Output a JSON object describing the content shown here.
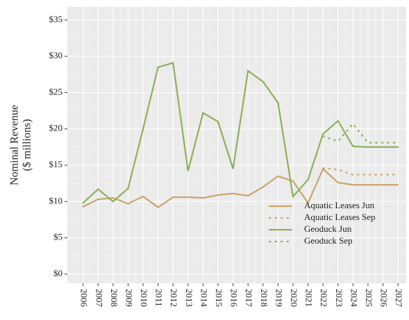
{
  "chart_data": {
    "type": "line",
    "y_label": [
      "Nominal Revenue",
      "($ millions)"
    ],
    "x": [
      2006,
      2007,
      2008,
      2009,
      2010,
      2011,
      2012,
      2013,
      2014,
      2015,
      2016,
      2017,
      2018,
      2019,
      2020,
      2021,
      2022,
      2023,
      2024,
      2025,
      2026,
      2027
    ],
    "series": [
      {
        "name": "Aquatic Leases Jun",
        "color": "#c9a46c",
        "dash": "solid",
        "values": [
          9.3,
          10.3,
          10.5,
          9.7,
          10.7,
          9.2,
          10.6,
          10.6,
          10.5,
          10.9,
          11.1,
          10.8,
          12.0,
          13.5,
          12.8,
          9.8,
          14.5,
          12.6,
          12.3,
          12.3,
          12.3,
          12.3
        ]
      },
      {
        "name": "Aquatic Leases Sep",
        "color": "#c9a46c",
        "dash": "dotted",
        "values": [
          null,
          null,
          null,
          null,
          null,
          null,
          null,
          null,
          null,
          null,
          null,
          null,
          null,
          null,
          null,
          null,
          14.6,
          14.4,
          13.7,
          13.7,
          13.7,
          13.7
        ]
      },
      {
        "name": "Geoduck Jun",
        "color": "#8db05a",
        "dash": "solid",
        "values": [
          9.8,
          11.7,
          10.0,
          11.8,
          20.0,
          28.5,
          29.1,
          14.2,
          22.2,
          21.0,
          14.5,
          28.0,
          26.5,
          23.6,
          10.7,
          13.0,
          19.3,
          21.1,
          17.6,
          17.5,
          17.5,
          17.5
        ]
      },
      {
        "name": "Geoduck Sep",
        "color": "#8db05a",
        "dash": "dotted",
        "values": [
          null,
          null,
          null,
          null,
          null,
          null,
          null,
          null,
          null,
          null,
          null,
          null,
          null,
          null,
          null,
          null,
          19.0,
          18.3,
          20.7,
          18.1,
          18.1,
          18.1
        ]
      }
    ],
    "xlim": [
      2004.95,
      2027.55
    ],
    "xticks": [
      2006,
      2007,
      2008,
      2009,
      2010,
      2011,
      2012,
      2013,
      2014,
      2015,
      2016,
      2017,
      2018,
      2019,
      2020,
      2021,
      2022,
      2023,
      2024,
      2025,
      2026,
      2027
    ],
    "ylim": [
      -1.25,
      36.8
    ],
    "yticks": [
      {
        "value": 0,
        "label": "$0"
      },
      {
        "value": 5,
        "label": "$5"
      },
      {
        "value": 10,
        "label": "$10"
      },
      {
        "value": 15,
        "label": "$15"
      },
      {
        "value": 20,
        "label": "$20"
      },
      {
        "value": 25,
        "label": "$25"
      },
      {
        "value": 30,
        "label": "$30"
      },
      {
        "value": 35,
        "label": "$35"
      }
    ],
    "grid": true,
    "legend": "bottom-right"
  }
}
